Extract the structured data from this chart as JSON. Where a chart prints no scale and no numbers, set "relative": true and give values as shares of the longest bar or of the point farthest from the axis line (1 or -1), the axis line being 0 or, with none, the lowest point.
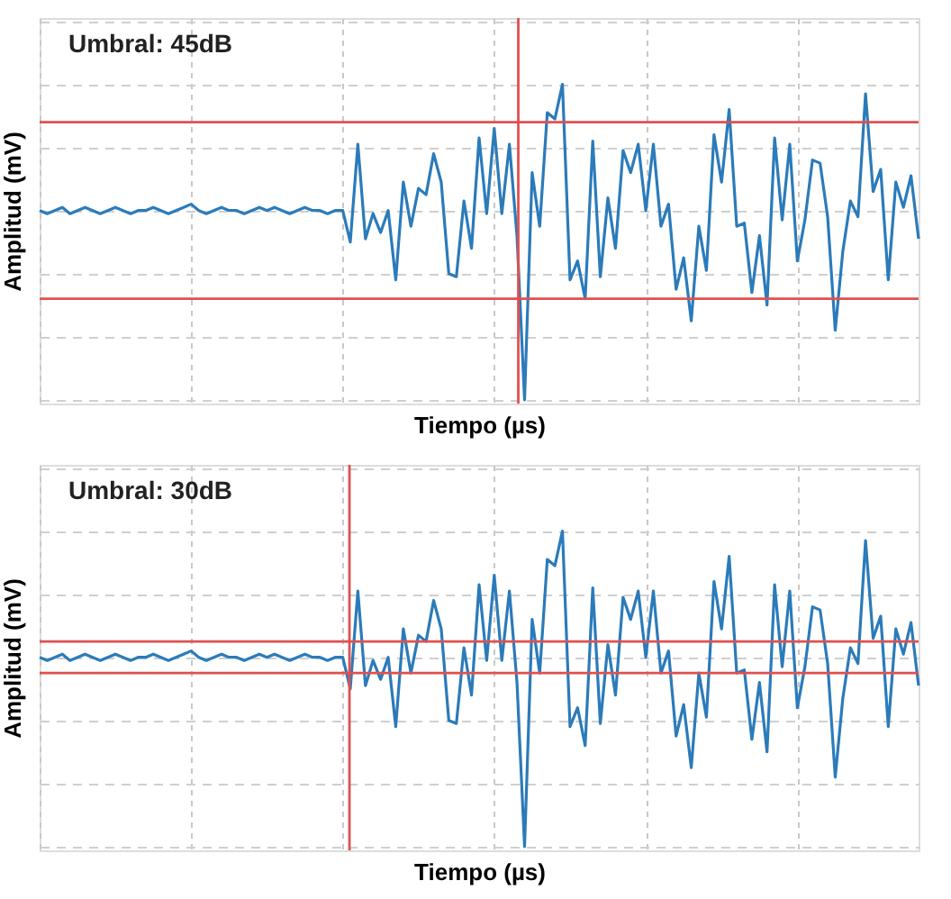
{
  "chart_data": [
    {
      "type": "line",
      "relative": true,
      "tick_labels": false,
      "grid": true,
      "line_style": "solid",
      "xlabel": "Tiempo (µs)",
      "ylabel": "Amplitud (mV)",
      "annotations": [
        "Umbral: 45dB"
      ],
      "categories": [
        null,
        null,
        null,
        null,
        null,
        null,
        null,
        null,
        null,
        null,
        null,
        null,
        null,
        null,
        null,
        null,
        null,
        null,
        null,
        null,
        null,
        null,
        null,
        null,
        null,
        null,
        null,
        null,
        null,
        null,
        null,
        null,
        null,
        null,
        null,
        null,
        null,
        null,
        null,
        null,
        null,
        null,
        null,
        null,
        null,
        null,
        null,
        null,
        null,
        null,
        null,
        null,
        null,
        null,
        null,
        null,
        null,
        null,
        null,
        null,
        null,
        null,
        null,
        null,
        null,
        null,
        null,
        null,
        null,
        null,
        null,
        null,
        null,
        null,
        null,
        null,
        null,
        null,
        null,
        null,
        null,
        null,
        null,
        null,
        null,
        null,
        null,
        null,
        null,
        null,
        null,
        null,
        null,
        null,
        null,
        null,
        null,
        null,
        null,
        null,
        null,
        null,
        null,
        null,
        null,
        null,
        null,
        null,
        null,
        null,
        null,
        null,
        null,
        null,
        null,
        null,
        null
      ],
      "series": [
        {
          "color": "#2b7bba",
          "values": [
            0.6,
            0.59,
            0.6,
            0.61,
            0.59,
            0.6,
            0.61,
            0.6,
            0.59,
            0.6,
            0.61,
            0.6,
            0.59,
            0.6,
            0.6,
            0.61,
            0.6,
            0.59,
            0.6,
            0.61,
            0.62,
            0.6,
            0.59,
            0.6,
            0.61,
            0.6,
            0.6,
            0.59,
            0.6,
            0.61,
            0.6,
            0.61,
            0.6,
            0.59,
            0.6,
            0.61,
            0.6,
            0.6,
            0.59,
            0.6,
            0.6,
            0.5,
            0.81,
            0.51,
            0.59,
            0.53,
            0.6,
            0.38,
            0.69,
            0.55,
            0.67,
            0.65,
            0.78,
            0.69,
            0.4,
            0.39,
            0.63,
            0.48,
            0.83,
            0.59,
            0.86,
            0.59,
            0.81,
            0.52,
            0.0,
            0.72,
            0.55,
            0.91,
            0.89,
            1.0,
            0.38,
            0.44,
            0.32,
            0.82,
            0.39,
            0.64,
            0.48,
            0.79,
            0.72,
            0.81,
            0.6,
            0.81,
            0.55,
            0.62,
            0.35,
            0.45,
            0.25,
            0.55,
            0.41,
            0.84,
            0.69,
            0.92,
            0.55,
            0.56,
            0.34,
            0.52,
            0.3,
            0.83,
            0.57,
            0.81,
            0.44,
            0.57,
            0.76,
            0.75,
            0.58,
            0.22,
            0.47,
            0.63,
            0.58,
            0.97,
            0.66,
            0.73,
            0.38,
            0.69,
            0.61,
            0.71,
            0.51
          ]
        }
      ],
      "ref_lines": [
        {
          "axis": "y",
          "value": 0.88,
          "color": "#e05050"
        },
        {
          "axis": "y",
          "value": 0.32,
          "color": "#e05050"
        }
      ]
    },
    {
      "type": "line",
      "relative": true,
      "tick_labels": false,
      "grid": true,
      "line_style": "solid",
      "xlabel": "Tiempo (µs)",
      "ylabel": "Amplitud (mV)",
      "annotations": [
        "Umbral: 30dB"
      ],
      "categories": [
        null,
        null,
        null,
        null,
        null,
        null,
        null,
        null,
        null,
        null,
        null,
        null,
        null,
        null,
        null,
        null,
        null,
        null,
        null,
        null,
        null,
        null,
        null,
        null,
        null,
        null,
        null,
        null,
        null,
        null,
        null,
        null,
        null,
        null,
        null,
        null,
        null,
        null,
        null,
        null,
        null,
        null,
        null,
        null,
        null,
        null,
        null,
        null,
        null,
        null,
        null,
        null,
        null,
        null,
        null,
        null,
        null,
        null,
        null,
        null,
        null,
        null,
        null,
        null,
        null,
        null,
        null,
        null,
        null,
        null,
        null,
        null,
        null,
        null,
        null,
        null,
        null,
        null,
        null,
        null,
        null,
        null,
        null,
        null,
        null,
        null,
        null,
        null,
        null,
        null,
        null,
        null,
        null,
        null,
        null,
        null,
        null,
        null,
        null,
        null,
        null,
        null,
        null,
        null,
        null,
        null,
        null,
        null,
        null,
        null,
        null,
        null,
        null,
        null,
        null,
        null,
        null
      ],
      "series": [
        {
          "color": "#2b7bba",
          "values": [
            0.6,
            0.59,
            0.6,
            0.61,
            0.59,
            0.6,
            0.61,
            0.6,
            0.59,
            0.6,
            0.61,
            0.6,
            0.59,
            0.6,
            0.6,
            0.61,
            0.6,
            0.59,
            0.6,
            0.61,
            0.62,
            0.6,
            0.59,
            0.6,
            0.61,
            0.6,
            0.6,
            0.59,
            0.6,
            0.61,
            0.6,
            0.61,
            0.6,
            0.59,
            0.6,
            0.61,
            0.6,
            0.6,
            0.59,
            0.6,
            0.6,
            0.5,
            0.81,
            0.51,
            0.59,
            0.53,
            0.6,
            0.38,
            0.69,
            0.55,
            0.67,
            0.65,
            0.78,
            0.69,
            0.4,
            0.39,
            0.63,
            0.48,
            0.83,
            0.59,
            0.86,
            0.59,
            0.81,
            0.52,
            0.0,
            0.72,
            0.55,
            0.91,
            0.89,
            1.0,
            0.38,
            0.44,
            0.32,
            0.82,
            0.39,
            0.64,
            0.48,
            0.79,
            0.72,
            0.81,
            0.6,
            0.81,
            0.55,
            0.62,
            0.35,
            0.45,
            0.25,
            0.55,
            0.41,
            0.84,
            0.69,
            0.92,
            0.55,
            0.56,
            0.34,
            0.52,
            0.3,
            0.83,
            0.57,
            0.81,
            0.44,
            0.57,
            0.76,
            0.75,
            0.58,
            0.22,
            0.47,
            0.63,
            0.58,
            0.97,
            0.66,
            0.73,
            0.38,
            0.69,
            0.61,
            0.71,
            0.51
          ]
        }
      ],
      "ref_lines": [
        {
          "axis": "y",
          "value": 0.65,
          "color": "#e05050"
        },
        {
          "axis": "y",
          "value": 0.55,
          "color": "#e05050"
        }
      ]
    }
  ]
}
